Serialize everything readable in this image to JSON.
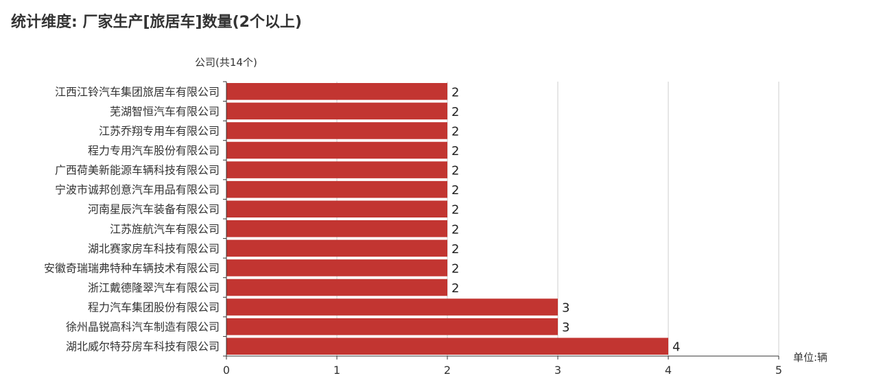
{
  "title": "统计维度: 厂家生产[旅居车]数量(2个以上)",
  "chart_data": {
    "type": "bar",
    "orientation": "horizontal",
    "title": "统计维度: 厂家生产[旅居车]数量(2个以上)",
    "ylabel": "公司(共14个)",
    "xlabel": "单位:辆",
    "xlim": [
      0,
      5
    ],
    "xticks": [
      0,
      1,
      2,
      3,
      4,
      5
    ],
    "grid": true,
    "bar_color": "#c23531",
    "categories": [
      "江西江铃汽车集团旅居车有限公司",
      "芜湖智恒汽车有限公司",
      "江苏乔翔专用车有限公司",
      "程力专用汽车股份有限公司",
      "广西荷美新能源车辆科技有限公司",
      "宁波市诚邦创意汽车用品有限公司",
      "河南星辰汽车装备有限公司",
      "江苏旌航汽车有限公司",
      "湖北赛家房车科技有限公司",
      "安徽奇瑞瑞弗特种车辆技术有限公司",
      "浙江戴德隆翠汽车有限公司",
      "程力汽车集团股份有限公司",
      "徐州晶锐高科汽车制造有限公司",
      "湖北威尔特芬房车科技有限公司"
    ],
    "values": [
      2,
      2,
      2,
      2,
      2,
      2,
      2,
      2,
      2,
      2,
      2,
      3,
      3,
      4
    ]
  }
}
